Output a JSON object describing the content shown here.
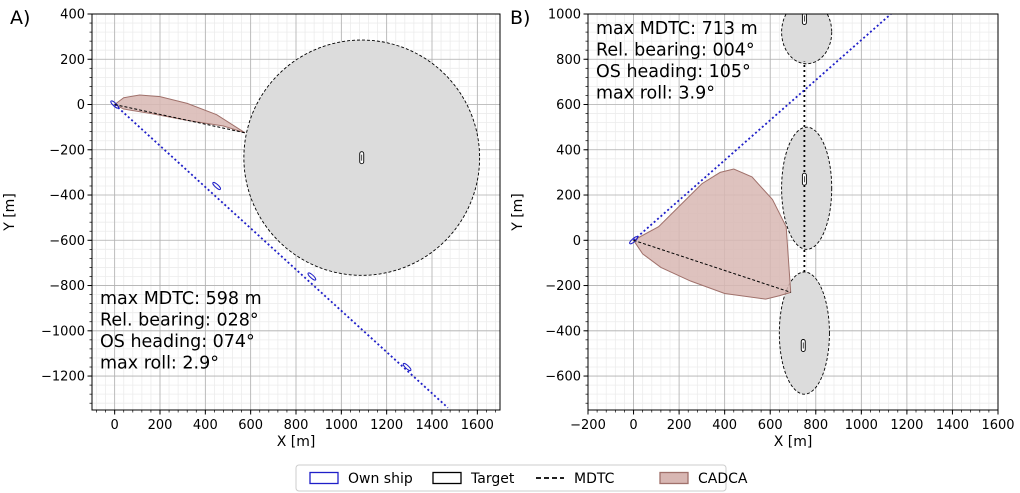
{
  "legend": {
    "entries": [
      {
        "label": "Own ship",
        "kind": "box",
        "edge": "#1f1fc8",
        "fill": "none"
      },
      {
        "label": "Target",
        "kind": "box",
        "edge": "#000000",
        "fill": "none"
      },
      {
        "label": "MDTC",
        "kind": "dash",
        "edge": "#000000",
        "fill": "none"
      },
      {
        "label": "CADCA",
        "kind": "box",
        "edge": "#a0716b",
        "fill": "#d8b7b3"
      }
    ]
  },
  "colors": {
    "own_ship": "#1f1fc8",
    "target": "#000000",
    "cadca_fill": "#d8b7b3",
    "cadca_edge": "#a0716b",
    "domain_fill": "#dcdcdc"
  },
  "chart_data": [
    {
      "panel": "A)",
      "type": "scatter",
      "xlabel": "X [m]",
      "ylabel": "Y [m]",
      "xlim": [
        -100,
        1700
      ],
      "ylim": [
        -1350,
        400
      ],
      "xticks": [
        0,
        200,
        400,
        600,
        800,
        1000,
        1200,
        1400,
        1600
      ],
      "yticks": [
        400,
        200,
        0,
        -200,
        -400,
        -600,
        -800,
        -1000,
        -1200
      ],
      "yticklabels": [
        "400",
        "200",
        "0",
        "−200",
        "−400",
        "−600",
        "−800",
        "−1000",
        "−1200"
      ],
      "grid": true,
      "annotation": [
        "max MDTC: 598 m",
        "Rel. bearing: 028°",
        "OS heading: 074°",
        "max roll: 2.9°"
      ],
      "own_ship_track": {
        "x": [
          0,
          1470
        ],
        "y": [
          0,
          -1340
        ]
      },
      "own_ship_marks": [
        {
          "x": 0,
          "y": 0
        },
        {
          "x": 450,
          "y": -360
        },
        {
          "x": 870,
          "y": -760
        },
        {
          "x": 1290,
          "y": -1160
        }
      ],
      "targets": [
        {
          "x": 1090,
          "y": -235
        }
      ],
      "target_domains": [
        {
          "cx": 1090,
          "cy": -235,
          "rx": 520,
          "ry": 520
        }
      ],
      "mdtc": {
        "x": [
          0,
          575
        ],
        "y": [
          0,
          -125
        ]
      },
      "cadca": {
        "x": [
          0,
          40,
          110,
          200,
          320,
          450,
          575,
          480,
          320,
          160,
          40,
          0
        ],
        "y": [
          0,
          30,
          42,
          35,
          5,
          -45,
          -125,
          -95,
          -70,
          -40,
          -20,
          0
        ]
      }
    },
    {
      "panel": "B)",
      "type": "scatter",
      "xlabel": "X [m]",
      "ylabel": "Y [m]",
      "xlim": [
        -200,
        1600
      ],
      "ylim": [
        -750,
        1000
      ],
      "xticks": [
        -200,
        0,
        200,
        400,
        600,
        800,
        1000,
        1200,
        1400,
        1600
      ],
      "xticklabels": [
        "−200",
        "0",
        "200",
        "400",
        "600",
        "800",
        "1000",
        "1200",
        "1400",
        "1600"
      ],
      "yticks": [
        1000,
        800,
        600,
        400,
        200,
        0,
        -200,
        -400,
        -600
      ],
      "yticklabels": [
        "1000",
        "800",
        "600",
        "400",
        "200",
        "0",
        "−200",
        "−400",
        "−600"
      ],
      "grid": true,
      "annotation": [
        "max MDTC: 713 m",
        "Rel. bearing: 004°",
        "OS heading: 105°",
        "max roll: 3.9°"
      ],
      "own_ship_track": {
        "x": [
          0,
          1130
        ],
        "y": [
          0,
          1000
        ]
      },
      "targets": [
        {
          "x": 750,
          "y": 980
        },
        {
          "x": 750,
          "y": 270
        },
        {
          "x": 745,
          "y": -465
        }
      ],
      "target_domains": [
        {
          "cx": 760,
          "cy": 920,
          "rx": 110,
          "ry": 140
        },
        {
          "cx": 760,
          "cy": 230,
          "rx": 110,
          "ry": 270
        },
        {
          "cx": 750,
          "cy": -410,
          "rx": 110,
          "ry": 270
        }
      ],
      "target_track": {
        "x": [
          750,
          750
        ],
        "y": [
          -140,
          790
        ]
      },
      "mdtc": {
        "x": [
          0,
          690
        ],
        "y": [
          0,
          -230
        ]
      },
      "cadca": {
        "x": [
          0,
          110,
          200,
          300,
          380,
          440,
          520,
          610,
          670,
          690,
          640,
          580,
          400,
          250,
          120,
          40,
          0
        ],
        "y": [
          0,
          60,
          150,
          250,
          300,
          315,
          280,
          180,
          60,
          -230,
          -245,
          -260,
          -235,
          -180,
          -120,
          -60,
          0
        ]
      }
    }
  ]
}
